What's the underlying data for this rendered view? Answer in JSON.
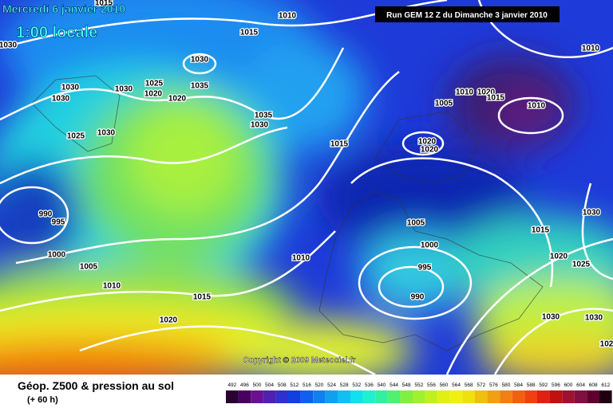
{
  "header": {
    "title": "Mercredi 6 janvier 2010",
    "time": "1:00 locale",
    "run": "Run GEM 12 Z du Dimanche 3 janvier 2010",
    "copyright": "Copyright © 2009 Meteociel.fr"
  },
  "footer": {
    "title": "Géop. Z500 & pression au sol",
    "lead": "(+ 60 h)"
  },
  "scale": {
    "labels": [
      492,
      496,
      500,
      504,
      508,
      512,
      516,
      520,
      524,
      528,
      532,
      536,
      540,
      544,
      548,
      552,
      556,
      560,
      564,
      568,
      572,
      576,
      580,
      584,
      588,
      592,
      596,
      600,
      604,
      608,
      612
    ]
  },
  "isobars": {
    "labels": [
      "1015",
      "1010",
      "1030",
      "1015",
      "1030",
      "1030",
      "1030",
      "1025",
      "1020",
      "1020",
      "1030",
      "1035",
      "1035",
      "1030",
      "1030",
      "1025",
      "1015",
      "1010",
      "1010",
      "1020",
      "1015",
      "1005",
      "1010",
      "1020",
      "1020",
      "990",
      "995",
      "1000",
      "1005",
      "1010",
      "1015",
      "1020",
      "1010",
      "1005",
      "1000",
      "995",
      "990",
      "1030",
      "1015",
      "1020",
      "1025",
      "1030",
      "1030",
      "102"
    ]
  }
}
